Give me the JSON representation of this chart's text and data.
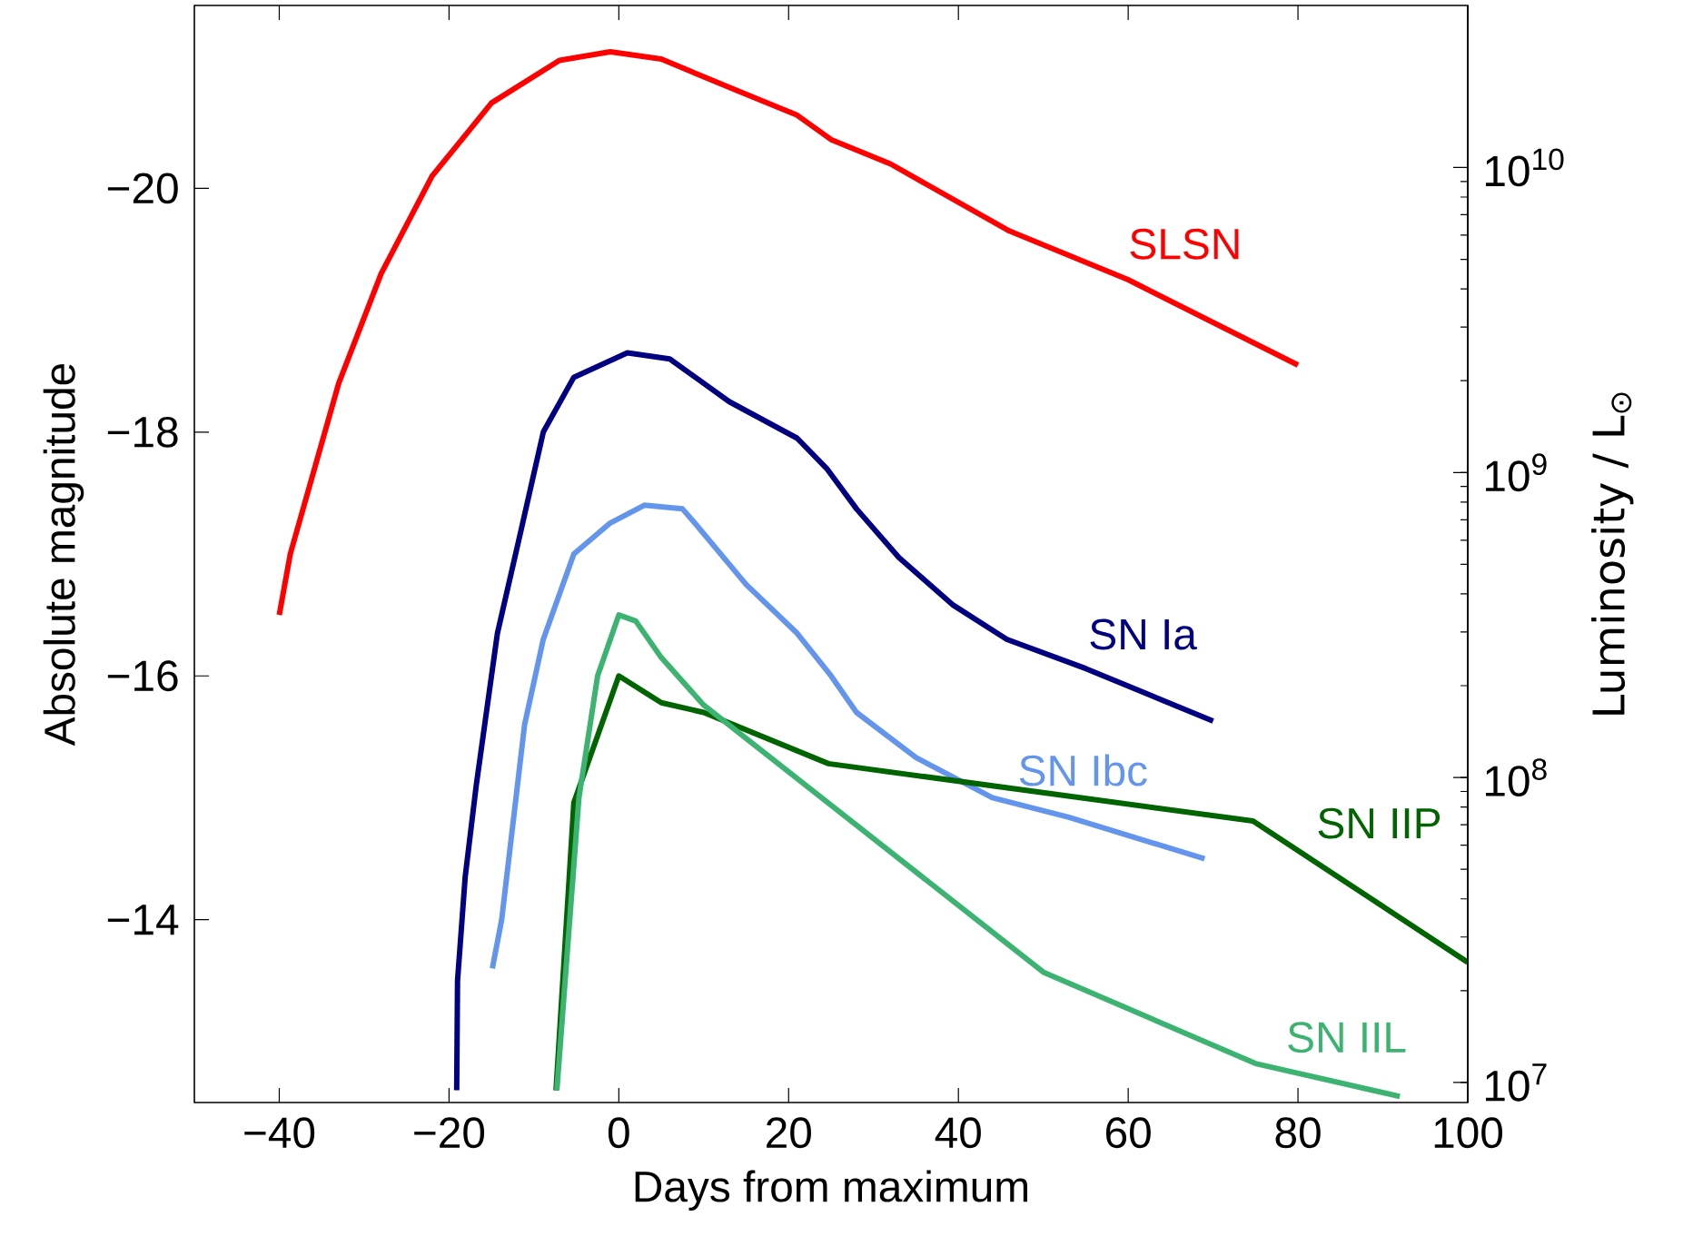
{
  "chart_data": {
    "type": "line",
    "xlabel": "Days from maximum",
    "ylabel": "Absolute magnitude",
    "y2label": "Luminosity / L$_{⊙}$",
    "xlim": [
      -50,
      100
    ],
    "xticks": [
      {
        "value": -40,
        "label": "−40"
      },
      {
        "value": -20,
        "label": "−20"
      },
      0,
      20,
      40,
      60,
      80,
      100
    ],
    "ylim": [
      -12.5,
      -21.5
    ],
    "yticks": [
      {
        "value": -20,
        "label": "−20"
      },
      {
        "value": -18,
        "label": "−18"
      },
      {
        "value": -16,
        "label": "−16"
      },
      {
        "value": -14,
        "label": "−14"
      }
    ],
    "y2lim": [
      8600000,
      34000000000
    ],
    "y2ticks": [
      {
        "value": 10000000,
        "label": "10$^{7}$"
      },
      {
        "value": 100000000,
        "label": "10$^{8}$"
      },
      {
        "value": 1000000000,
        "label": "10$^{9}$"
      },
      {
        "value": 10000000000,
        "label": "10$^{10}$"
      }
    ],
    "log": "y2",
    "grid": false,
    "legend": false,
    "series": [
      {
        "name": "SLSN",
        "color": "#ff0000",
        "x": [
          -40,
          -38.7,
          -33,
          -28,
          -22,
          -15,
          -7,
          -1,
          5,
          14,
          21,
          25,
          32,
          46,
          60,
          80
        ],
        "values": [
          -16.5,
          -17.0,
          -18.4,
          -19.3,
          -20.1,
          -20.7,
          -21.05,
          -21.12,
          -21.06,
          -20.8,
          -20.6,
          -20.4,
          -20.2,
          -19.65,
          -19.25,
          -18.55
        ]
      },
      {
        "name": "SN Ia",
        "color": "#000080",
        "x": [
          -19.1,
          -19.0,
          -18.1,
          -16.8,
          -14.3,
          -11.5,
          -8.9,
          -5.3,
          1,
          6,
          13,
          21,
          24.5,
          28,
          33,
          39.4,
          45.7,
          55,
          70
        ],
        "values": [
          -12.6,
          -13.5,
          -14.35,
          -15.1,
          -16.35,
          -17.2,
          -18.0,
          -18.45,
          -18.65,
          -18.6,
          -18.25,
          -17.95,
          -17.7,
          -17.37,
          -16.97,
          -16.58,
          -16.3,
          -16.06,
          -15.63
        ]
      },
      {
        "name": "SN Ibc",
        "color": "#6495ed",
        "x": [
          -14.9,
          -13.8,
          -11.1,
          -8.9,
          -5.3,
          -1.1,
          3,
          7.5,
          9,
          15,
          21,
          25,
          28,
          35,
          44,
          53,
          69
        ],
        "values": [
          -13.6,
          -14.0,
          -15.6,
          -16.3,
          -17.0,
          -17.25,
          -17.4,
          -17.37,
          -17.25,
          -16.75,
          -16.35,
          -16.0,
          -15.7,
          -15.33,
          -15.0,
          -14.84,
          -14.5
        ]
      },
      {
        "name": "SN IIP",
        "color": "#006400",
        "x": [
          -7.4,
          -5.3,
          0,
          5,
          10,
          24.7,
          74.7,
          100
        ],
        "values": [
          -12.6,
          -14.96,
          -16.0,
          -15.78,
          -15.7,
          -15.28,
          -14.81,
          -13.65
        ]
      },
      {
        "name": "SN IIL",
        "color": "#3cb371",
        "x": [
          -7.3,
          -4.7,
          -2.5,
          0,
          2,
          5,
          10,
          25,
          50,
          75,
          92
        ],
        "values": [
          -12.6,
          -15.0,
          -16.0,
          -16.5,
          -16.45,
          -16.15,
          -15.76,
          -14.94,
          -13.57,
          -12.82,
          -12.55
        ]
      }
    ]
  }
}
